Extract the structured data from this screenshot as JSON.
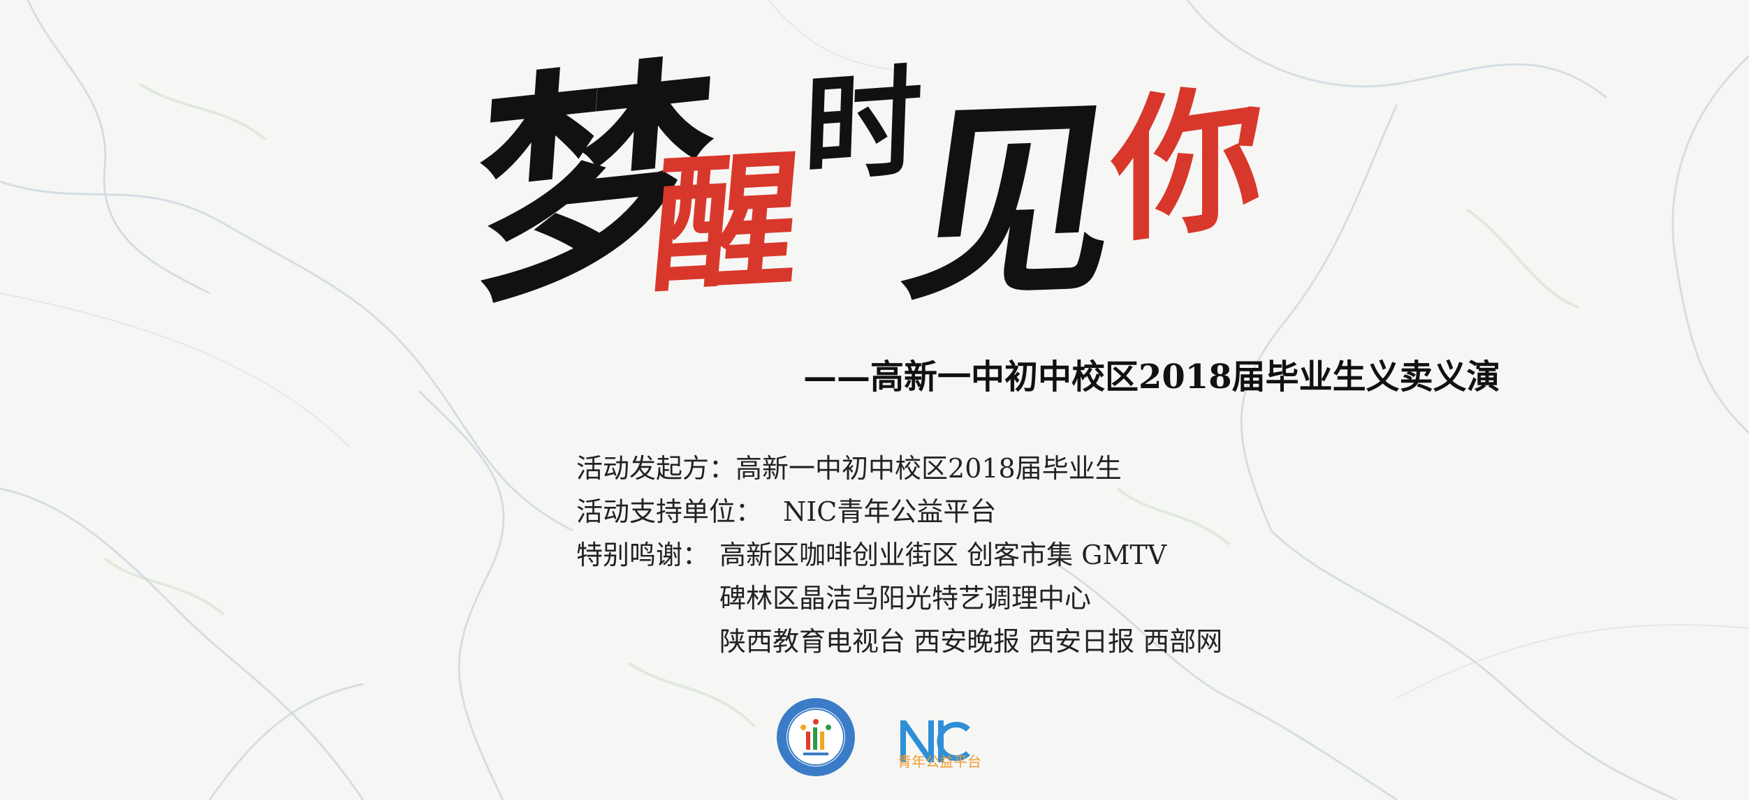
{
  "title": {
    "chars": [
      "梦",
      "醒",
      "时",
      "见",
      "你"
    ],
    "colors": {
      "black": "#111111",
      "red": "#d8382b"
    }
  },
  "subtitle": "——高新一中初中校区2018届毕业生义卖义演",
  "info": {
    "organizer_label": "活动发起方：",
    "organizer_value": "高新一中初中校区2018届毕业生",
    "supporter_label": "活动支持单位：",
    "supporter_value": "NIC青年公益平台",
    "thanks_label": "特别鸣谢：",
    "thanks_lines": [
      "高新区咖啡创业街区  创客市集  GMTV",
      "碑林区晶洁乌阳光特艺调理中心",
      "陕西教育电视台 西安晚报 西安日报 西部网"
    ]
  },
  "logos": {
    "school": "school-emblem",
    "nic": "NIC",
    "nic_tagline": "青年公益平台"
  }
}
